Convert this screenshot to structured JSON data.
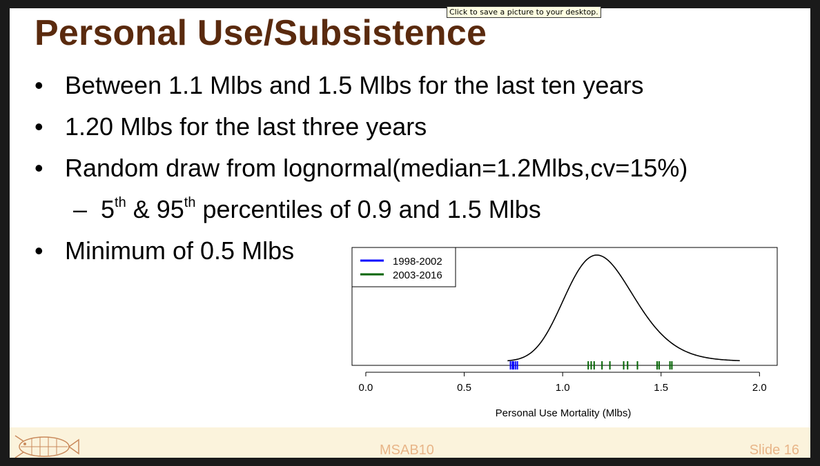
{
  "tooltip": "Click to save a picture to your desktop.",
  "slide": {
    "title": "Personal Use/Subsistence",
    "bullets": [
      {
        "text": "Between 1.1 Mlbs and 1.5 Mlbs for the last ten years"
      },
      {
        "text": "1.20 Mlbs for the last three years"
      },
      {
        "text": "Random draw from lognormal(median=1.2Mlbs,cv=15%)"
      },
      {
        "sub": true,
        "pre": "5",
        "sup1": "th",
        "mid": " & 95",
        "sup2": "th",
        "post": " percentiles of 0.9 and 1.5 Mlbs"
      },
      {
        "text": "Minimum of 0.5 Mlbs"
      }
    ],
    "bullet_symbol": "•",
    "sub_bullet_symbol": "–"
  },
  "footer": {
    "center": "MSAB10",
    "right": "Slide 16",
    "logo_icon": "fish-logo-icon"
  },
  "colors": {
    "title": "#5a2a0e",
    "footer_bg": "#fbf3dc",
    "footer_text": "#e8b588",
    "series_1998": "#0000ff",
    "series_2003": "#006400"
  },
  "chart_data": {
    "type": "line",
    "xlabel": "Personal Use Mortality (Mlbs)",
    "ylabel": "",
    "xlim": [
      -0.07,
      2.09
    ],
    "xticks": [
      0.0,
      0.5,
      1.0,
      1.5,
      2.0
    ],
    "xtick_labels": [
      "0.0",
      "0.5",
      "1.0",
      "1.5",
      "2.0"
    ],
    "curve": {
      "distribution": "lognormal",
      "median": 1.2,
      "cv": 0.15,
      "x_start": 0.72,
      "x_end": 1.9
    },
    "series": [
      {
        "name": "1998-2002",
        "color": "#0000ff",
        "values": [
          0.735,
          0.745,
          0.75,
          0.76,
          0.77
        ]
      },
      {
        "name": "2003-2016",
        "color": "#006400",
        "values": [
          1.13,
          1.145,
          1.16,
          1.2,
          1.24,
          1.31,
          1.33,
          1.38,
          1.48,
          1.49,
          1.545,
          1.555
        ]
      }
    ],
    "legend_position": "top-left",
    "grid": false
  }
}
